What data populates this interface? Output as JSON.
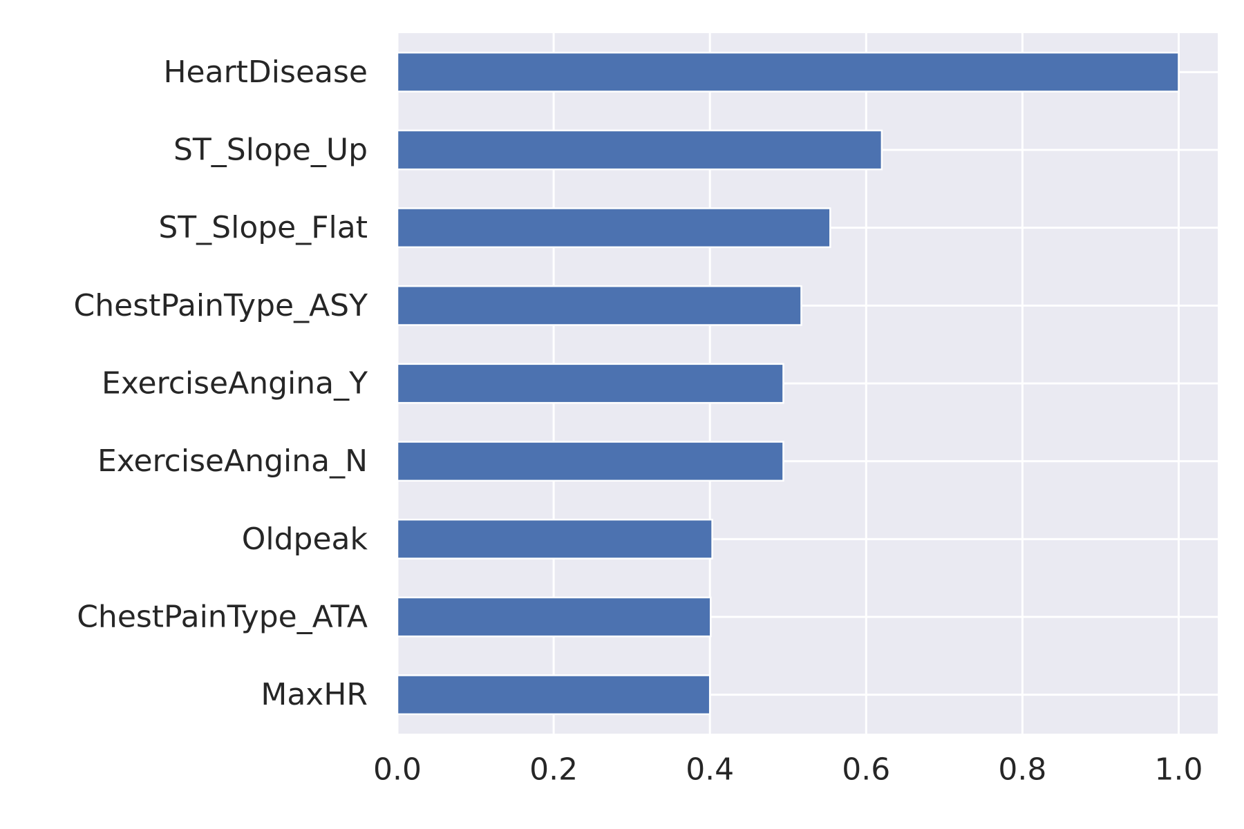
{
  "chart_data": {
    "type": "bar",
    "orientation": "horizontal",
    "categories": [
      "HeartDisease",
      "ST_Slope_Up",
      "ST_Slope_Flat",
      "ChestPainType_ASY",
      "ExerciseAngina_Y",
      "ExerciseAngina_N",
      "Oldpeak",
      "ChestPainType_ATA",
      "MaxHR"
    ],
    "values": [
      1.0,
      0.62,
      0.554,
      0.517,
      0.494,
      0.494,
      0.403,
      0.401,
      0.4
    ],
    "title": "",
    "xlabel": "",
    "ylabel": "",
    "xlim": [
      0,
      1.05
    ],
    "x_ticks": [
      "0.0",
      "0.2",
      "0.4",
      "0.6",
      "0.8",
      "1.0"
    ],
    "grid": true,
    "legend": "none",
    "colors": {
      "bar": "#4c72b0",
      "plot_background": "#eaeaf2",
      "grid": "#ffffff",
      "text": "#262626"
    }
  }
}
